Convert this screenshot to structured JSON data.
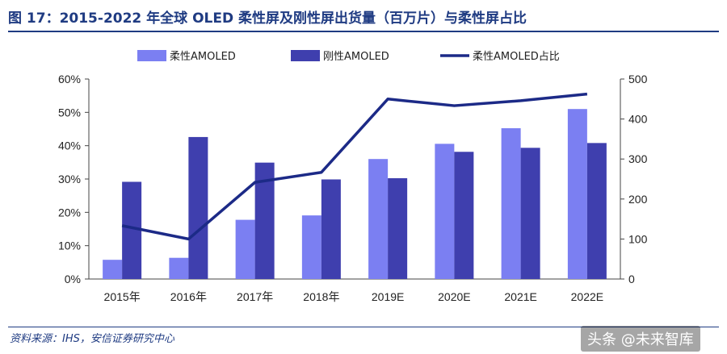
{
  "figure": {
    "title": "图 17：2015-2022 年全球 OLED 柔性屏及刚性屏出货量（百万片）与柔性屏占比",
    "source": "资料来源：IHS，安信证券研究中心",
    "watermark": "头条 @未来智库"
  },
  "chart_data": {
    "type": "bar",
    "categories": [
      "2015年",
      "2016年",
      "2017年",
      "2018年",
      "2019E",
      "2020E",
      "2021E",
      "2022E"
    ],
    "series": [
      {
        "name": "柔性AMOLED",
        "type": "bar",
        "axis": "right",
        "color": "#7b7ff2",
        "values": [
          48,
          53,
          148,
          159,
          300,
          338,
          377,
          425
        ]
      },
      {
        "name": "刚性AMOLED",
        "type": "bar",
        "axis": "right",
        "color": "#3f3fae",
        "values": [
          243,
          355,
          291,
          249,
          252,
          318,
          328,
          340
        ]
      },
      {
        "name": "柔性AMOLED占比",
        "type": "line",
        "axis": "left",
        "color": "#1c2a87",
        "values": [
          0.16,
          0.12,
          0.29,
          0.32,
          0.54,
          0.52,
          0.535,
          0.555
        ]
      }
    ],
    "y_left": {
      "min": 0,
      "max": 0.6,
      "ticks": [
        "0%",
        "10%",
        "20%",
        "30%",
        "40%",
        "50%",
        "60%"
      ]
    },
    "y_right": {
      "min": 0,
      "max": 500,
      "ticks": [
        "0",
        "100",
        "200",
        "300",
        "400",
        "500"
      ]
    },
    "legend_position": "top",
    "grid": false
  }
}
